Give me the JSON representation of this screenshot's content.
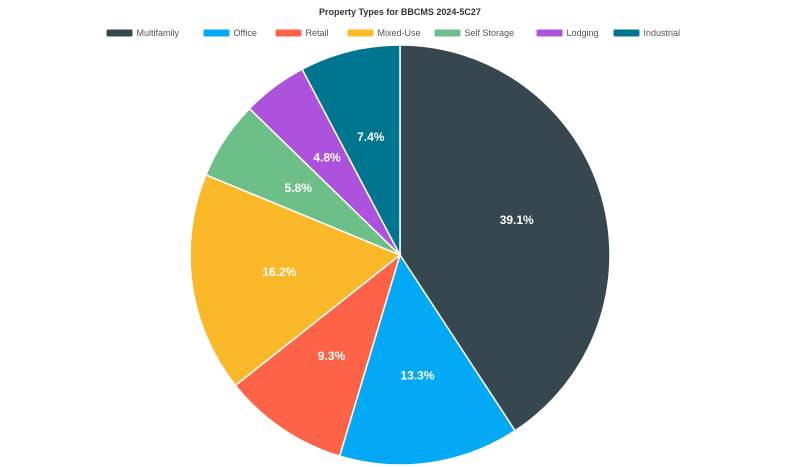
{
  "chart_data": {
    "type": "pie",
    "title": "Property Types for BBCMS 2024-5C27",
    "legend_position": "top-center",
    "start_angle": "12 o'clock",
    "direction": "clockwise",
    "slices": [
      {
        "name": "Multifamily",
        "value": 39.1,
        "label": "39.1%",
        "color": "#37474f"
      },
      {
        "name": "Office",
        "value": 13.3,
        "label": "13.3%",
        "color": "#03a9f4"
      },
      {
        "name": "Retail",
        "value": 9.3,
        "label": "9.3%",
        "color": "#ff6347"
      },
      {
        "name": "Mixed-Use",
        "value": 16.2,
        "label": "16.2%",
        "color": "#fbb829"
      },
      {
        "name": "Self Storage",
        "value": 5.8,
        "label": "5.8%",
        "color": "#6bbf87"
      },
      {
        "name": "Lodging",
        "value": 4.8,
        "label": "4.8%",
        "color": "#ad52dd"
      },
      {
        "name": "Industrial",
        "value": 7.4,
        "label": "7.4%",
        "color": "#00758f"
      }
    ]
  }
}
